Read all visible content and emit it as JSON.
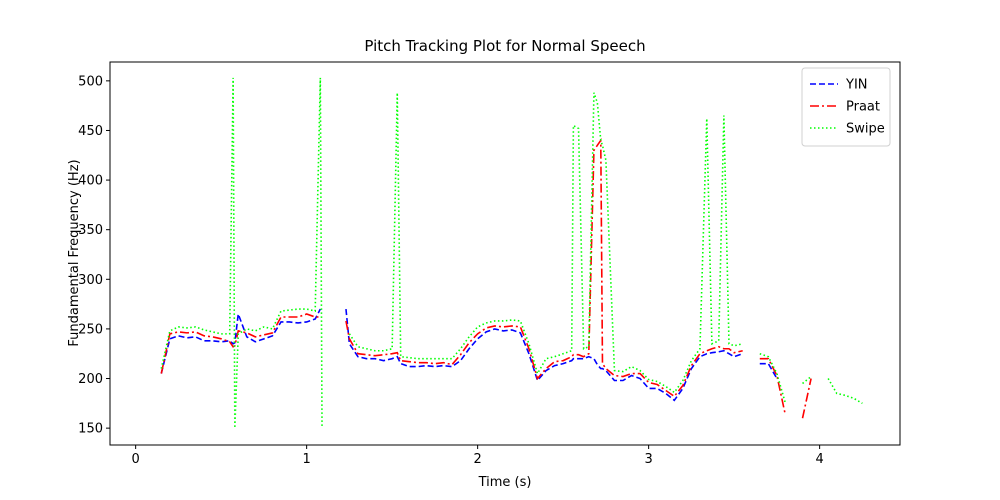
{
  "chart_data": {
    "type": "line",
    "title": "Pitch Tracking Plot for Normal Speech",
    "xlabel": "Time (s)",
    "ylabel": "Fundamental Frequency (Hz)",
    "xlim": [
      -0.15,
      4.47
    ],
    "ylim": [
      133,
      519
    ],
    "xticks": [
      0,
      1,
      2,
      3,
      4
    ],
    "yticks": [
      150,
      200,
      250,
      300,
      350,
      400,
      450,
      500
    ],
    "legend": "upper right",
    "x": [
      0.15,
      0.2,
      0.25,
      0.3,
      0.35,
      0.4,
      0.45,
      0.5,
      0.55,
      0.57,
      0.58,
      0.6,
      0.65,
      0.7,
      0.75,
      0.8,
      0.85,
      0.9,
      0.95,
      1.0,
      1.05,
      1.08,
      1.09,
      1.23,
      1.25,
      1.3,
      1.35,
      1.4,
      1.45,
      1.5,
      1.53,
      1.55,
      1.6,
      1.65,
      1.7,
      1.75,
      1.8,
      1.85,
      1.9,
      1.95,
      2.0,
      2.05,
      2.1,
      2.15,
      2.2,
      2.25,
      2.3,
      2.35,
      2.4,
      2.45,
      2.5,
      2.55,
      2.56,
      2.59,
      2.62,
      2.65,
      2.68,
      2.7,
      2.72,
      2.73,
      2.75,
      2.8,
      2.85,
      2.9,
      2.95,
      3.0,
      3.05,
      3.1,
      3.15,
      3.2,
      3.25,
      3.3,
      3.34,
      3.37,
      3.41,
      3.44,
      3.47,
      3.5,
      3.55,
      3.6,
      3.65,
      3.7,
      3.75,
      3.8,
      3.85,
      3.9,
      3.95,
      4.0,
      4.05,
      4.1,
      4.15,
      4.2,
      4.25
    ],
    "series": [
      {
        "name": "YIN",
        "color": "#0000ff",
        "dash": "dashed",
        "values": [
          205,
          240,
          243,
          241,
          242,
          238,
          238,
          237,
          238,
          235,
          236,
          265,
          242,
          237,
          240,
          243,
          257,
          257,
          256,
          257,
          260,
          270,
          null,
          270,
          235,
          222,
          220,
          220,
          218,
          220,
          222,
          215,
          212,
          212,
          213,
          212,
          213,
          212,
          218,
          230,
          240,
          247,
          250,
          248,
          249,
          246,
          225,
          198,
          208,
          213,
          215,
          218,
          220,
          220,
          220,
          222,
          220,
          214,
          210,
          210,
          208,
          198,
          198,
          203,
          200,
          190,
          190,
          185,
          178,
          190,
          210,
          222,
          225,
          226,
          227,
          228,
          225,
          222,
          225,
          null,
          215,
          215,
          200,
          null,
          null,
          null,
          null,
          null,
          null,
          null,
          null,
          null,
          null
        ]
      },
      {
        "name": "Praat",
        "color": "#ff0000",
        "dash": "dashdot",
        "values": [
          205,
          245,
          247,
          246,
          247,
          243,
          242,
          240,
          237,
          232,
          233,
          248,
          246,
          242,
          244,
          246,
          262,
          262,
          262,
          265,
          262,
          262,
          null,
          258,
          240,
          225,
          224,
          223,
          224,
          225,
          226,
          218,
          217,
          216,
          216,
          215,
          216,
          214,
          224,
          236,
          245,
          251,
          253,
          252,
          253,
          252,
          230,
          200,
          210,
          217,
          218,
          222,
          224,
          224,
          222,
          225,
          430,
          435,
          440,
          215,
          210,
          203,
          202,
          205,
          205,
          196,
          194,
          188,
          182,
          193,
          213,
          225,
          228,
          230,
          232,
          230,
          230,
          226,
          228,
          null,
          220,
          220,
          203,
          163,
          null,
          160,
          200,
          null,
          null,
          null,
          null,
          null,
          null
        ]
      },
      {
        "name": "Swipe",
        "color": "#00ff00",
        "dash": "dotted",
        "values": [
          210,
          248,
          252,
          251,
          252,
          249,
          247,
          245,
          245,
          503,
          150,
          245,
          250,
          248,
          252,
          250,
          268,
          269,
          270,
          270,
          268,
          503,
          150,
          null,
          245,
          232,
          230,
          228,
          228,
          230,
          488,
          222,
          221,
          220,
          220,
          220,
          220,
          220,
          230,
          242,
          252,
          256,
          258,
          258,
          259,
          258,
          235,
          205,
          220,
          222,
          225,
          228,
          455,
          452,
          230,
          232,
          488,
          478,
          440,
          435,
          420,
          208,
          207,
          212,
          208,
          199,
          197,
          192,
          186,
          198,
          218,
          230,
          462,
          235,
          238,
          465,
          235,
          233,
          235,
          null,
          225,
          222,
          205,
          175,
          null,
          195,
          202,
          null,
          200,
          185,
          183,
          180,
          175
        ]
      }
    ]
  }
}
